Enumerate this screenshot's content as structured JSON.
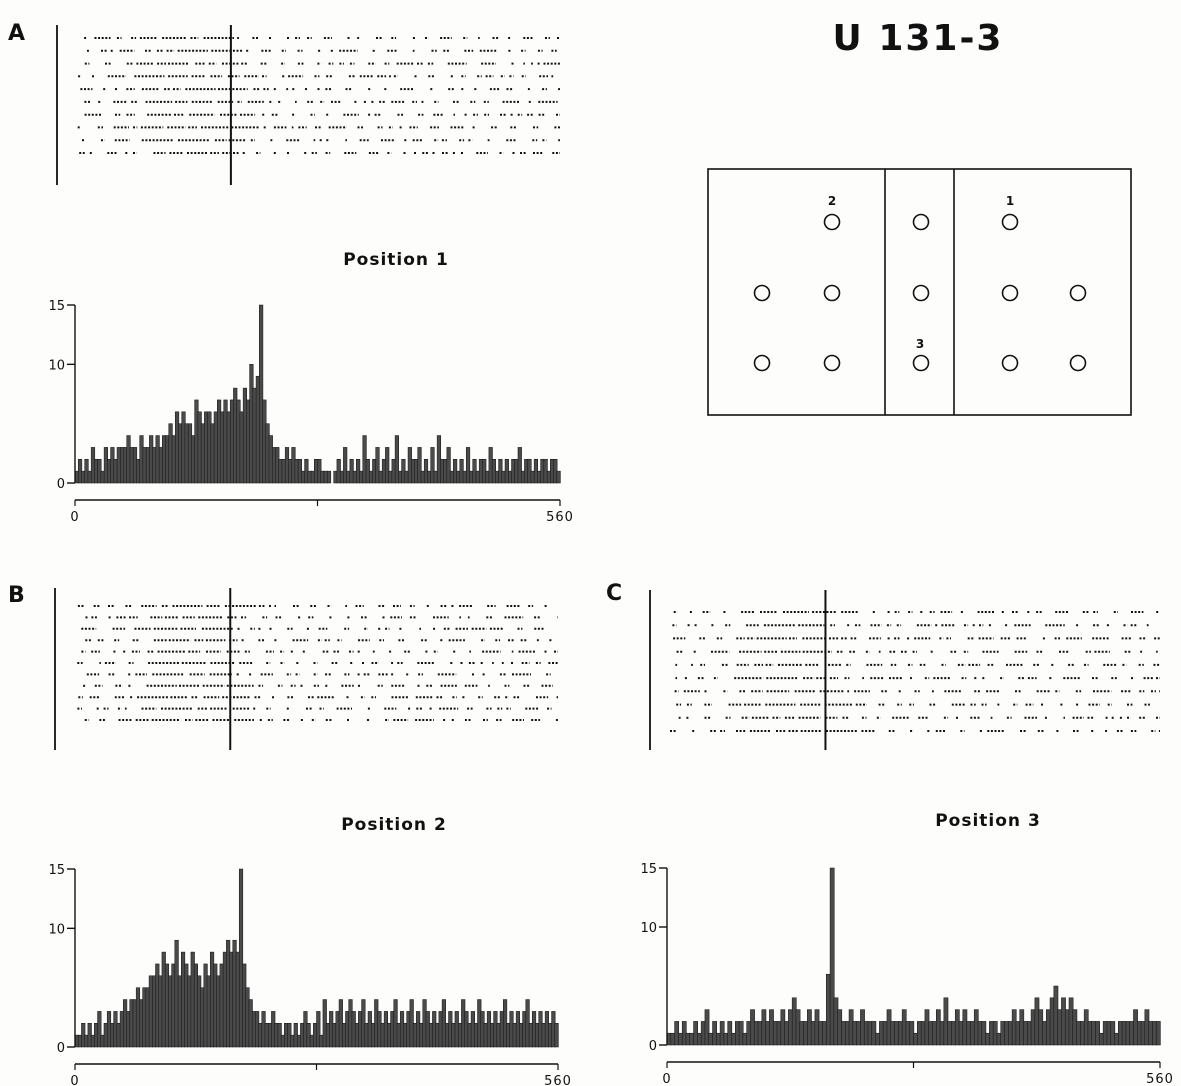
{
  "figure": {
    "title": "U 131-3",
    "colors": {
      "ink": "#111111",
      "hist_fill": "#4a4a4a",
      "paper": "#fdfdfb"
    }
  },
  "board": {
    "hole_labels": [
      {
        "text": "2",
        "row": 0,
        "col": 1
      },
      {
        "text": "1",
        "row": 0,
        "col": 3
      },
      {
        "text": "3",
        "row": 2,
        "col": 2
      }
    ],
    "holes": [
      {
        "row": 0,
        "col": 1
      },
      {
        "row": 0,
        "col": 2
      },
      {
        "row": 0,
        "col": 3
      },
      {
        "row": 1,
        "col": 0
      },
      {
        "row": 1,
        "col": 1
      },
      {
        "row": 1,
        "col": 2
      },
      {
        "row": 1,
        "col": 3
      },
      {
        "row": 1,
        "col": 4
      },
      {
        "row": 2,
        "col": 0
      },
      {
        "row": 2,
        "col": 1
      },
      {
        "row": 2,
        "col": 2
      },
      {
        "row": 2,
        "col": 3
      },
      {
        "row": 2,
        "col": 4
      }
    ]
  },
  "chart_data": [
    {
      "type": "bar",
      "panel": "A",
      "title": "Position 1",
      "xlim": [
        0,
        560
      ],
      "ylim": [
        0,
        15
      ],
      "yticks": [
        0,
        10,
        15
      ],
      "xtick_labels": [
        "0",
        "560"
      ],
      "event_time": 180,
      "raster_trials": 10,
      "values": [
        1,
        2,
        1,
        2,
        1,
        3,
        2,
        2,
        1,
        3,
        2,
        3,
        2,
        3,
        3,
        3,
        4,
        3,
        3,
        2,
        4,
        3,
        3,
        4,
        3,
        4,
        3,
        4,
        4,
        5,
        4,
        6,
        5,
        6,
        5,
        5,
        4,
        7,
        6,
        5,
        6,
        6,
        5,
        6,
        7,
        6,
        7,
        6,
        7,
        8,
        7,
        6,
        8,
        7,
        10,
        8,
        9,
        15,
        7,
        5,
        4,
        3,
        3,
        2,
        2,
        3,
        2,
        3,
        2,
        2,
        1,
        2,
        1,
        1,
        2,
        2,
        1,
        1,
        1,
        0,
        1,
        2,
        1,
        3,
        1,
        2,
        1,
        2,
        1,
        4,
        2,
        1,
        2,
        3,
        1,
        2,
        3,
        1,
        2,
        4,
        1,
        2,
        1,
        3,
        2,
        2,
        3,
        1,
        2,
        1,
        3,
        1,
        4,
        2,
        2,
        3,
        1,
        2,
        1,
        2,
        1,
        3,
        1,
        2,
        1,
        2,
        2,
        1,
        3,
        2,
        1,
        2,
        1,
        2,
        1,
        2,
        2,
        3,
        1,
        2,
        2,
        1,
        2,
        1,
        2,
        2,
        1,
        2,
        2,
        1
      ]
    },
    {
      "type": "bar",
      "panel": "B",
      "title": "Position 2",
      "xlim": [
        0,
        560
      ],
      "ylim": [
        0,
        15
      ],
      "yticks": [
        0,
        10,
        15
      ],
      "xtick_labels": [
        "0",
        "560"
      ],
      "event_time": 180,
      "raster_trials": 11,
      "values": [
        1,
        1,
        2,
        1,
        2,
        1,
        2,
        3,
        1,
        2,
        3,
        2,
        3,
        2,
        3,
        4,
        3,
        4,
        4,
        5,
        4,
        5,
        5,
        6,
        6,
        7,
        6,
        8,
        7,
        6,
        7,
        9,
        6,
        8,
        7,
        6,
        8,
        7,
        6,
        5,
        7,
        6,
        8,
        7,
        6,
        7,
        8,
        9,
        8,
        9,
        8,
        15,
        7,
        5,
        4,
        3,
        3,
        2,
        3,
        2,
        2,
        3,
        2,
        2,
        1,
        2,
        2,
        1,
        2,
        1,
        2,
        3,
        2,
        1,
        2,
        3,
        1,
        4,
        2,
        3,
        2,
        3,
        4,
        2,
        3,
        4,
        3,
        2,
        3,
        4,
        2,
        3,
        2,
        4,
        3,
        2,
        3,
        2,
        3,
        4,
        2,
        3,
        2,
        3,
        4,
        2,
        3,
        2,
        4,
        3,
        2,
        3,
        2,
        3,
        4,
        2,
        3,
        2,
        3,
        2,
        4,
        3,
        2,
        3,
        2,
        4,
        3,
        2,
        3,
        2,
        3,
        2,
        3,
        4,
        2,
        3,
        2,
        3,
        2,
        3,
        4,
        2,
        3,
        2,
        3,
        2,
        3,
        2,
        3,
        2
      ]
    },
    {
      "type": "bar",
      "panel": "C",
      "title": "Position 3",
      "xlim": [
        0,
        560
      ],
      "ylim": [
        0,
        15
      ],
      "yticks": [
        0,
        10,
        15
      ],
      "xtick_labels": [
        "0",
        "560"
      ],
      "event_time": 180,
      "raster_trials": 10,
      "values": [
        1,
        1,
        2,
        1,
        2,
        1,
        1,
        2,
        1,
        2,
        3,
        1,
        2,
        1,
        2,
        1,
        2,
        1,
        2,
        2,
        1,
        2,
        3,
        2,
        2,
        3,
        2,
        3,
        2,
        2,
        3,
        2,
        3,
        4,
        3,
        2,
        2,
        3,
        2,
        3,
        2,
        2,
        6,
        15,
        4,
        3,
        2,
        2,
        3,
        2,
        2,
        3,
        2,
        2,
        2,
        1,
        2,
        2,
        3,
        2,
        2,
        2,
        3,
        2,
        2,
        1,
        2,
        2,
        3,
        2,
        2,
        3,
        2,
        4,
        2,
        2,
        3,
        2,
        3,
        2,
        2,
        3,
        2,
        2,
        1,
        2,
        2,
        1,
        2,
        2,
        2,
        3,
        2,
        3,
        2,
        2,
        3,
        4,
        3,
        2,
        3,
        4,
        5,
        3,
        4,
        3,
        4,
        3,
        2,
        2,
        3,
        2,
        2,
        2,
        1,
        2,
        2,
        2,
        1,
        2,
        2,
        2,
        2,
        3,
        2,
        2,
        3,
        2,
        2,
        2
      ]
    }
  ]
}
